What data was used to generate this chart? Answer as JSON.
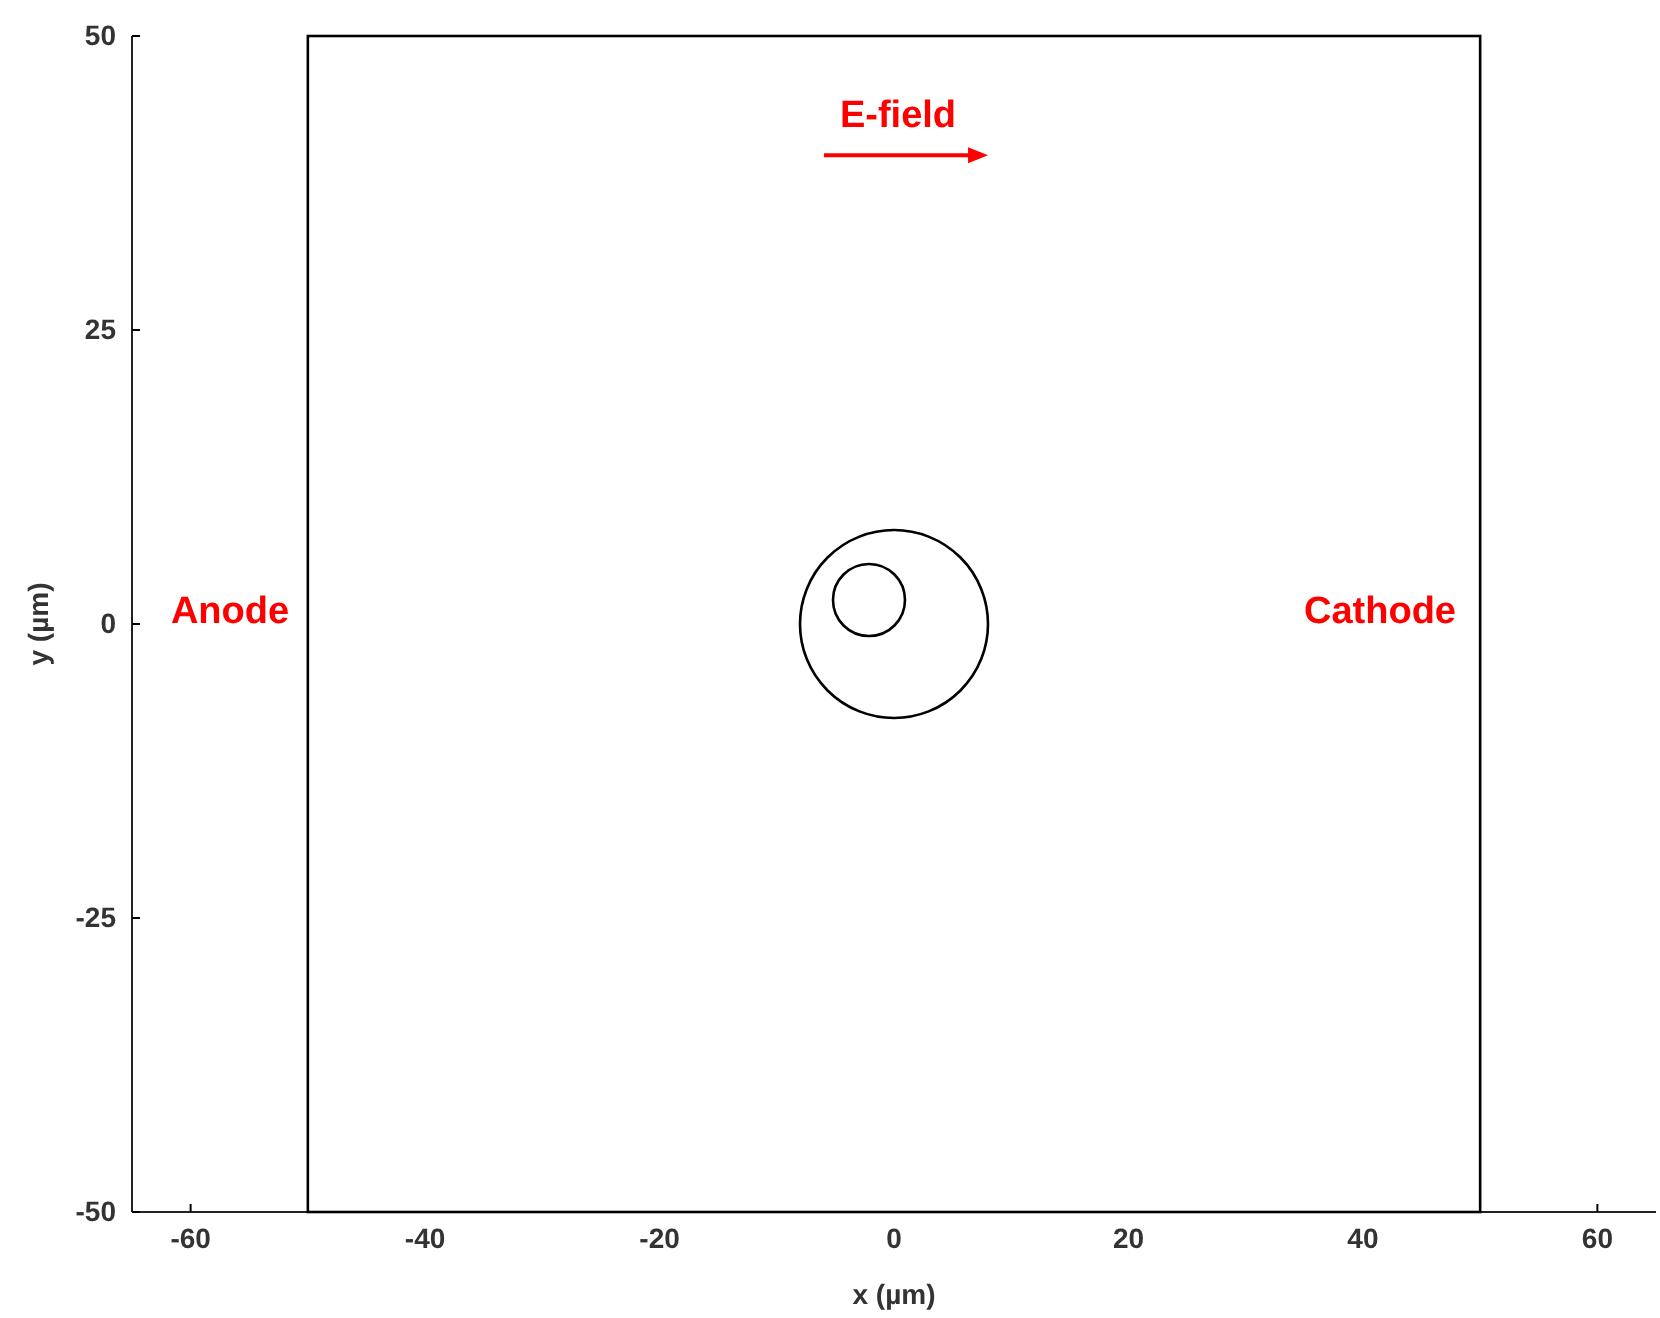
{
  "chart_data": {
    "type": "line",
    "xlabel": "x (µm)",
    "ylabel": "y (µm)",
    "xlim": [
      -65,
      65
    ],
    "ylim": [
      -50,
      50
    ],
    "xticks": [
      -60,
      -40,
      -20,
      0,
      20,
      40,
      60
    ],
    "yticks": [
      -50,
      -25,
      0,
      25,
      50
    ],
    "grid": false,
    "annotations": [
      "Anode",
      "Cathode",
      "E-field"
    ],
    "bands": [
      {
        "axis": "x",
        "from": -50,
        "to": 50,
        "color": "#ffffff"
      }
    ]
  }
}
